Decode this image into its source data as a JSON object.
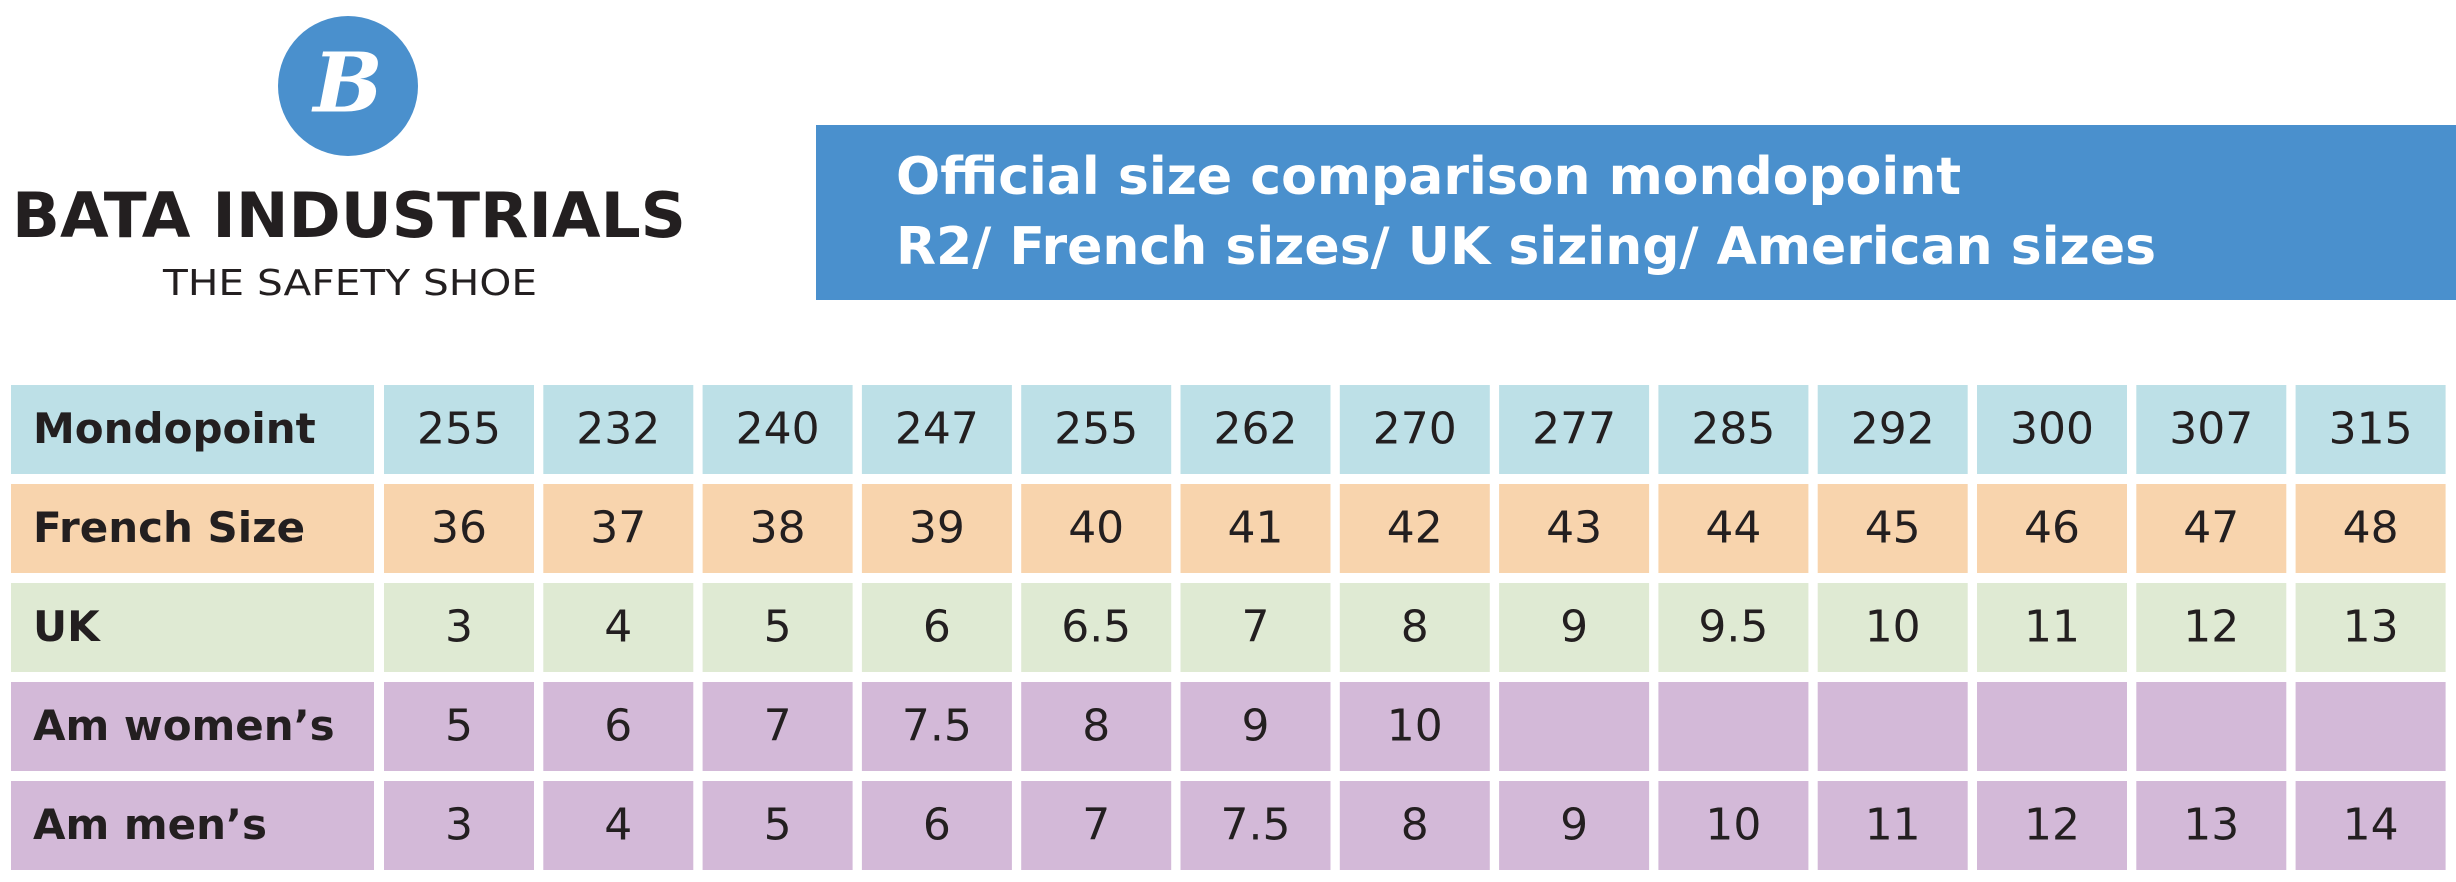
{
  "logo": {
    "letter": "B",
    "name": "BATA INDUSTRIALS",
    "tagline": "THE SAFETY SHOE"
  },
  "header": {
    "title_lines": [
      "Official size comparison mondopoint",
      "R2/ French sizes/ UK sizing/ American sizes"
    ]
  },
  "table": {
    "rows": [
      {
        "label": "Mondopoint",
        "cells": [
          255,
          232,
          240,
          247,
          255,
          262,
          270,
          277,
          285,
          292,
          300,
          307,
          315
        ]
      },
      {
        "label": "French Size",
        "cells": [
          36,
          37,
          38,
          39,
          40,
          41,
          42,
          43,
          44,
          45,
          46,
          47,
          48
        ]
      },
      {
        "label": "UK",
        "cells": [
          3,
          4,
          5,
          6,
          6.5,
          7,
          8,
          9,
          9.5,
          10,
          11,
          12,
          13
        ]
      },
      {
        "label": "Am women’s",
        "cells": [
          5,
          6,
          7,
          7.5,
          8,
          9,
          10,
          null,
          null,
          null,
          null,
          null,
          null
        ]
      },
      {
        "label": "Am men’s",
        "cells": [
          3,
          4,
          5,
          6,
          7,
          7.5,
          8,
          9,
          10,
          11,
          12,
          13,
          14
        ]
      }
    ]
  }
}
